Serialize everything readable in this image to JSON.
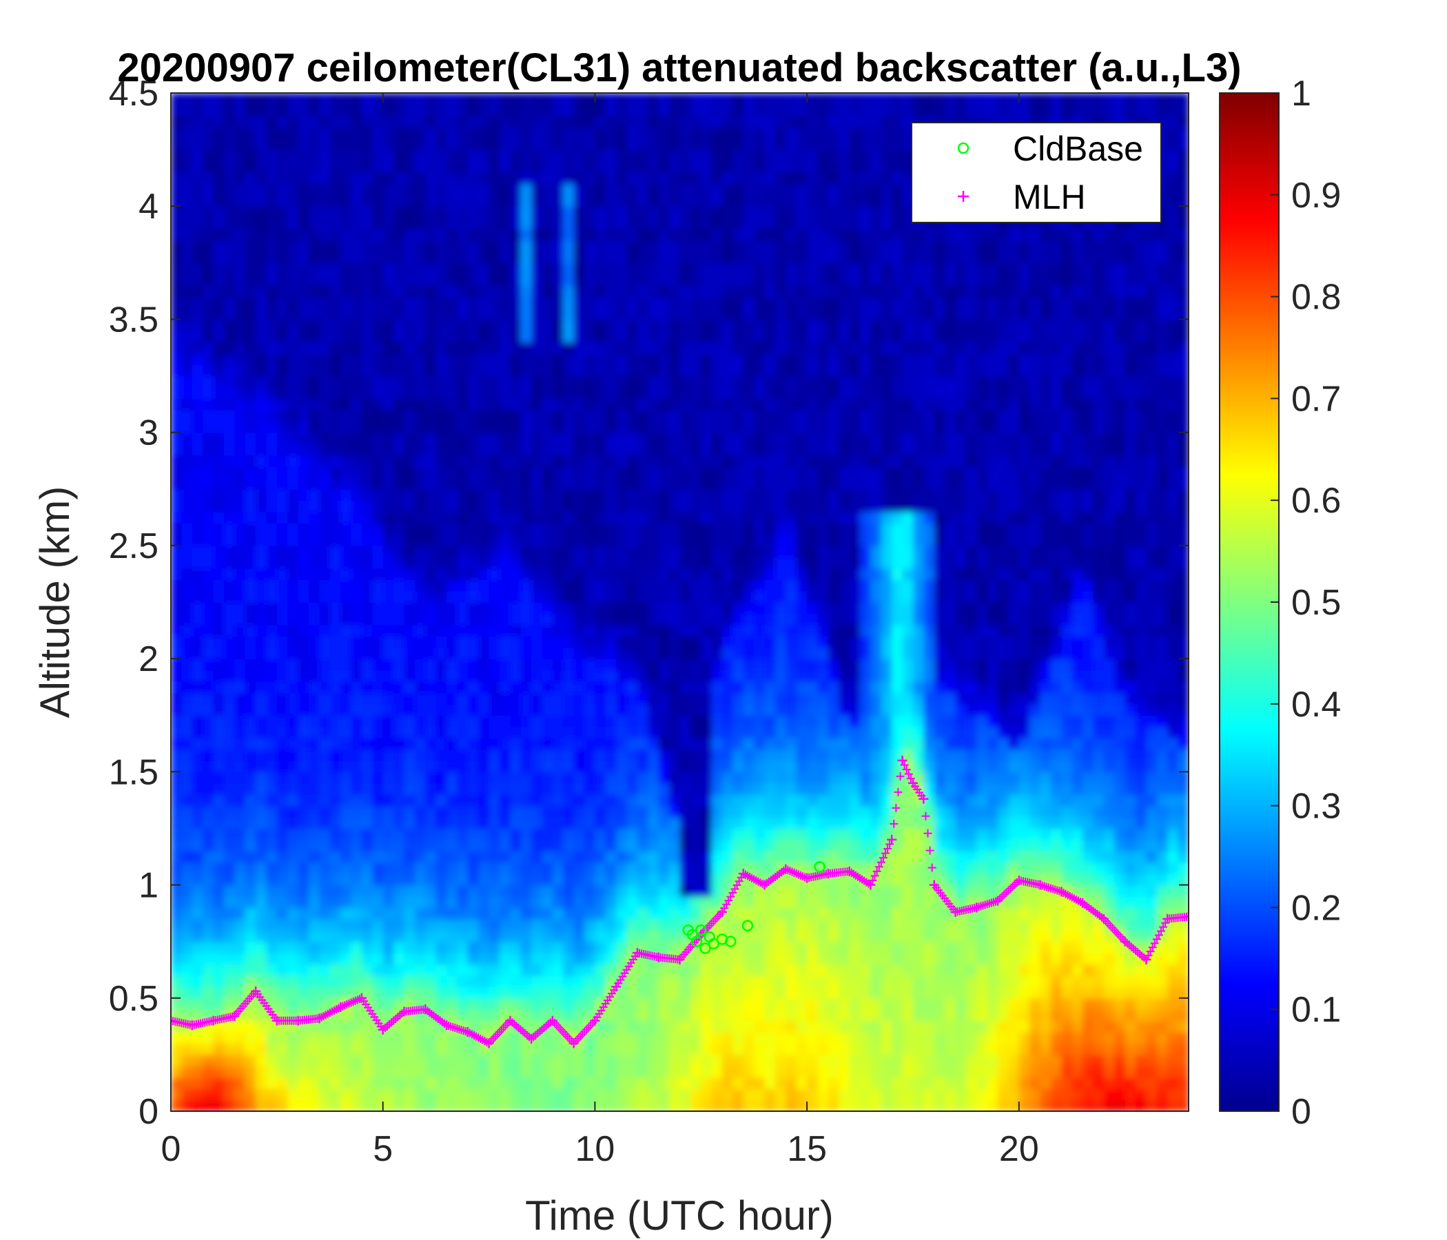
{
  "chart_data": {
    "type": "heatmap",
    "title": "20200907 ceilometer(CL31) attenuated backscatter (a.u.,L3)",
    "xlabel": "Time (UTC hour)",
    "ylabel": "Altitude (km)",
    "xlim": [
      0,
      24
    ],
    "ylim": [
      0,
      4.5
    ],
    "xticks": [
      0,
      5,
      10,
      15,
      20
    ],
    "xtick_labels": [
      "0",
      "5",
      "10",
      "15",
      "20"
    ],
    "yticks": [
      0,
      0.5,
      1,
      1.5,
      2,
      2.5,
      3,
      3.5,
      4,
      4.5
    ],
    "ytick_labels": [
      "0",
      "0.5",
      "1",
      "1.5",
      "2",
      "2.5",
      "3",
      "3.5",
      "4",
      "4.5"
    ],
    "colorbar": {
      "colormap": "jet",
      "clim": [
        0,
        1
      ],
      "ticks": [
        0,
        0.1,
        0.2,
        0.3,
        0.4,
        0.5,
        0.6,
        0.7,
        0.8,
        0.9,
        1
      ],
      "tick_labels": [
        "0",
        "0.1",
        "0.2",
        "0.3",
        "0.4",
        "0.5",
        "0.6",
        "0.7",
        "0.8",
        "0.9",
        "1"
      ]
    },
    "legend": {
      "location": "top-right",
      "entries": [
        {
          "name": "CldBase",
          "marker": "circle",
          "color": "#00ff00"
        },
        {
          "name": "MLH",
          "marker": "plus",
          "color": "#ff00ff"
        }
      ]
    },
    "series": [
      {
        "name": "MLH",
        "x": [
          0,
          0.5,
          1,
          1.5,
          2,
          2.5,
          3,
          3.5,
          4,
          4.5,
          5,
          5.5,
          6,
          6.5,
          7,
          7.5,
          8,
          8.5,
          9,
          9.5,
          10,
          10.5,
          11,
          11.5,
          12,
          12.5,
          13,
          13.5,
          14,
          14.5,
          15,
          15.5,
          16,
          16.5,
          17,
          17.25,
          17.5,
          17.75,
          18,
          18.5,
          19,
          19.5,
          20,
          20.5,
          21,
          21.5,
          22,
          22.5,
          23,
          23.5,
          24
        ],
        "values": [
          0.4,
          0.38,
          0.4,
          0.42,
          0.53,
          0.4,
          0.4,
          0.41,
          0.46,
          0.5,
          0.36,
          0.44,
          0.45,
          0.38,
          0.35,
          0.3,
          0.4,
          0.32,
          0.4,
          0.3,
          0.4,
          0.55,
          0.7,
          0.68,
          0.67,
          0.78,
          0.88,
          1.05,
          1.0,
          1.07,
          1.03,
          1.05,
          1.06,
          1.0,
          1.2,
          1.55,
          1.45,
          1.38,
          1.0,
          0.88,
          0.9,
          0.93,
          1.02,
          1.0,
          0.97,
          0.92,
          0.85,
          0.75,
          0.67,
          0.85,
          0.86
        ]
      },
      {
        "name": "CldBase",
        "x": [
          12.2,
          12.3,
          12.4,
          12.5,
          12.6,
          12.7,
          12.8,
          13.0,
          13.2,
          13.6,
          15.3
        ],
        "values": [
          0.8,
          0.78,
          0.75,
          0.8,
          0.72,
          0.77,
          0.74,
          0.76,
          0.75,
          0.82,
          1.08
        ]
      }
    ]
  }
}
